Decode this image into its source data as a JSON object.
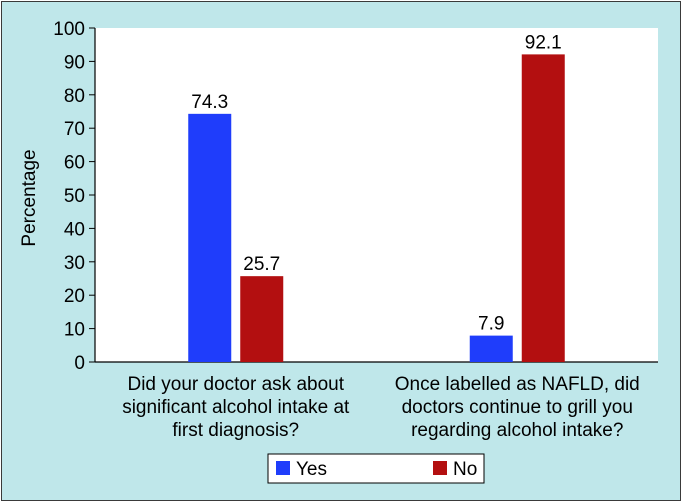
{
  "chart_data": {
    "type": "bar",
    "title": "",
    "xlabel": "",
    "ylabel": "Percentage",
    "ylim": [
      0,
      100
    ],
    "yticks": [
      0,
      10,
      20,
      30,
      40,
      50,
      60,
      70,
      80,
      90,
      100
    ],
    "grid": false,
    "legend_position": "bottom",
    "categories": [
      [
        "Did your doctor ask about",
        "significant alcohol intake at",
        "first diagnosis?"
      ],
      [
        "Once labelled as NAFLD, did",
        "doctors continue to grill you",
        "regarding alcohol intake?"
      ]
    ],
    "series": [
      {
        "name": "Yes",
        "color": "#1f3dfb",
        "values": [
          74.3,
          7.9
        ]
      },
      {
        "name": "No",
        "color": "#b30f10",
        "values": [
          25.7,
          92.1
        ]
      }
    ],
    "data_labels": [
      [
        "74.3",
        "7.9"
      ],
      [
        "25.7",
        "92.1"
      ]
    ],
    "background": "#bfe7ea"
  }
}
